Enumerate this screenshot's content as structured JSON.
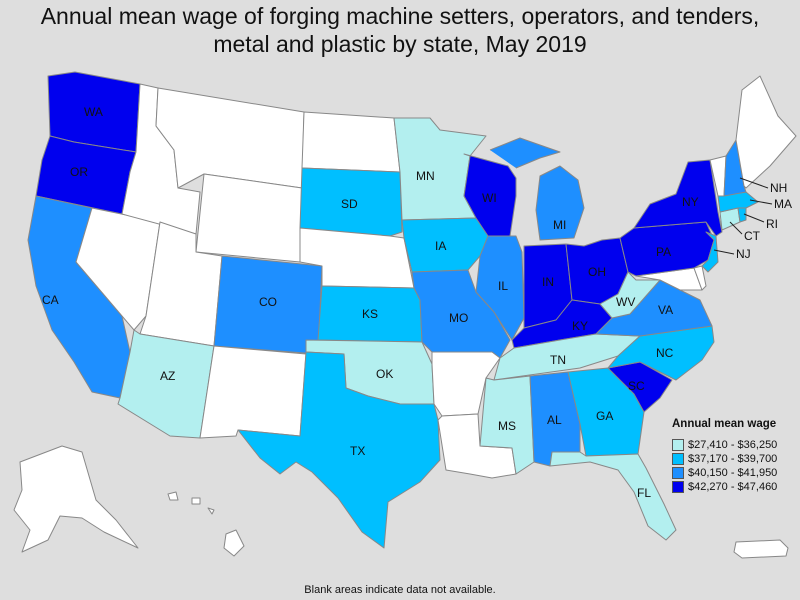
{
  "title": "Annual mean wage of forging machine setters, operators, and tenders, metal and plastic by state, May 2019",
  "title_lines": [
    "Annual mean wage of forging machine setters, operators, and tenders,",
    "metal and plastic by state, May 2019"
  ],
  "footnote": "Blank areas indicate data not available.",
  "legend": {
    "title": "Annual mean wage",
    "items": [
      {
        "label": "$27,410 - $36,250",
        "color": "#b3efef"
      },
      {
        "label": "$37,170 - $39,700",
        "color": "#00bfff"
      },
      {
        "label": "$40,150 - $41,950",
        "color": "#1e8fff"
      },
      {
        "label": "$42,270 - $47,460",
        "color": "#0000ee"
      }
    ]
  },
  "colors": {
    "no_data": "#ffffff",
    "tier1": "#b3efef",
    "tier2": "#00bfff",
    "tier3": "#1e8fff",
    "tier4": "#0000ee"
  },
  "states": [
    {
      "abbr": "WA",
      "tier": 4
    },
    {
      "abbr": "OR",
      "tier": 4
    },
    {
      "abbr": "CA",
      "tier": 3
    },
    {
      "abbr": "AZ",
      "tier": 1
    },
    {
      "abbr": "CO",
      "tier": 3
    },
    {
      "abbr": "SD",
      "tier": 2
    },
    {
      "abbr": "MN",
      "tier": 1
    },
    {
      "abbr": "IA",
      "tier": 2
    },
    {
      "abbr": "KS",
      "tier": 2
    },
    {
      "abbr": "OK",
      "tier": 1
    },
    {
      "abbr": "TX",
      "tier": 2
    },
    {
      "abbr": "MO",
      "tier": 3
    },
    {
      "abbr": "WI",
      "tier": 4
    },
    {
      "abbr": "IL",
      "tier": 3
    },
    {
      "abbr": "MI",
      "tier": 3
    },
    {
      "abbr": "IN",
      "tier": 4
    },
    {
      "abbr": "OH",
      "tier": 4
    },
    {
      "abbr": "KY",
      "tier": 4
    },
    {
      "abbr": "TN",
      "tier": 1
    },
    {
      "abbr": "MS",
      "tier": 1
    },
    {
      "abbr": "AL",
      "tier": 3
    },
    {
      "abbr": "GA",
      "tier": 2
    },
    {
      "abbr": "FL",
      "tier": 1
    },
    {
      "abbr": "SC",
      "tier": 4
    },
    {
      "abbr": "NC",
      "tier": 2
    },
    {
      "abbr": "VA",
      "tier": 3
    },
    {
      "abbr": "WV",
      "tier": 1
    },
    {
      "abbr": "PA",
      "tier": 4
    },
    {
      "abbr": "NY",
      "tier": 4
    },
    {
      "abbr": "NJ",
      "tier": 2
    },
    {
      "abbr": "CT",
      "tier": 1
    },
    {
      "abbr": "RI",
      "tier": 2
    },
    {
      "abbr": "MA",
      "tier": 2
    },
    {
      "abbr": "NH",
      "tier": 3
    },
    {
      "abbr": "MT",
      "tier": 0
    },
    {
      "abbr": "ID",
      "tier": 0
    },
    {
      "abbr": "NV",
      "tier": 0
    },
    {
      "abbr": "UT",
      "tier": 0
    },
    {
      "abbr": "WY",
      "tier": 0
    },
    {
      "abbr": "NM",
      "tier": 0
    },
    {
      "abbr": "ND",
      "tier": 0
    },
    {
      "abbr": "NE",
      "tier": 0
    },
    {
      "abbr": "AR",
      "tier": 0
    },
    {
      "abbr": "LA",
      "tier": 0
    },
    {
      "abbr": "ME",
      "tier": 0
    },
    {
      "abbr": "VT",
      "tier": 0
    },
    {
      "abbr": "MD",
      "tier": 0
    },
    {
      "abbr": "DE",
      "tier": 0
    },
    {
      "abbr": "AK",
      "tier": 0
    },
    {
      "abbr": "HI",
      "tier": 0
    },
    {
      "abbr": "PR",
      "tier": 0
    }
  ]
}
